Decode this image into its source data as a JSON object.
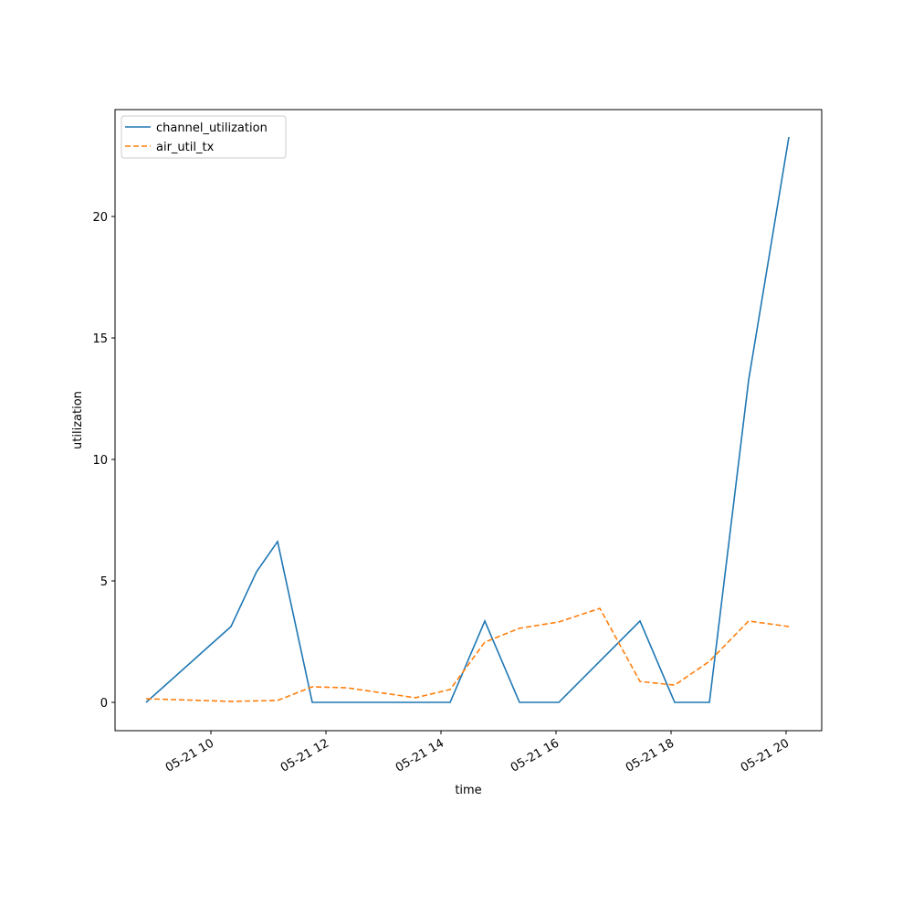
{
  "chart_data": {
    "type": "line",
    "x_label": "time",
    "y_label": "utilization",
    "xlim": [
      8.333,
      20.619
    ],
    "ylim": [
      -1.165,
      24.4
    ],
    "xticks": [
      {
        "value": 10,
        "label": "05-21 10"
      },
      {
        "value": 12,
        "label": "05-21 12"
      },
      {
        "value": 14,
        "label": "05-21 14"
      },
      {
        "value": 16,
        "label": "05-21 16"
      },
      {
        "value": 18,
        "label": "05-21 18"
      },
      {
        "value": 20,
        "label": "05-21 20"
      }
    ],
    "yticks": [
      0,
      5,
      10,
      15,
      20
    ],
    "legend": "upper-left",
    "series": [
      {
        "name": "channel_utilization",
        "color": "#1f77b4",
        "dash": "solid",
        "x": [
          8.873,
          10.349,
          10.794,
          11.159,
          11.762,
          14.159,
          14.762,
          15.365,
          16.048,
          17.46,
          18.063,
          18.667,
          19.349,
          20.048
        ],
        "values": [
          0,
          3.12,
          5.38,
          6.62,
          0,
          0,
          3.35,
          0,
          0,
          3.35,
          0,
          0,
          13.27,
          23.27
        ]
      },
      {
        "name": "air_util_tx",
        "color": "#ff7f0e",
        "dash": "dashed",
        "x": [
          8.873,
          10.349,
          11.159,
          11.762,
          12.365,
          13.556,
          14.159,
          14.762,
          15.365,
          16.048,
          16.762,
          17.46,
          18.063,
          18.667,
          19.349,
          20.048
        ],
        "values": [
          0.15,
          0.04,
          0.08,
          0.64,
          0.6,
          0.19,
          0.53,
          2.48,
          3.05,
          3.31,
          3.87,
          0.86,
          0.71,
          1.69,
          3.35,
          3.12
        ]
      }
    ]
  }
}
